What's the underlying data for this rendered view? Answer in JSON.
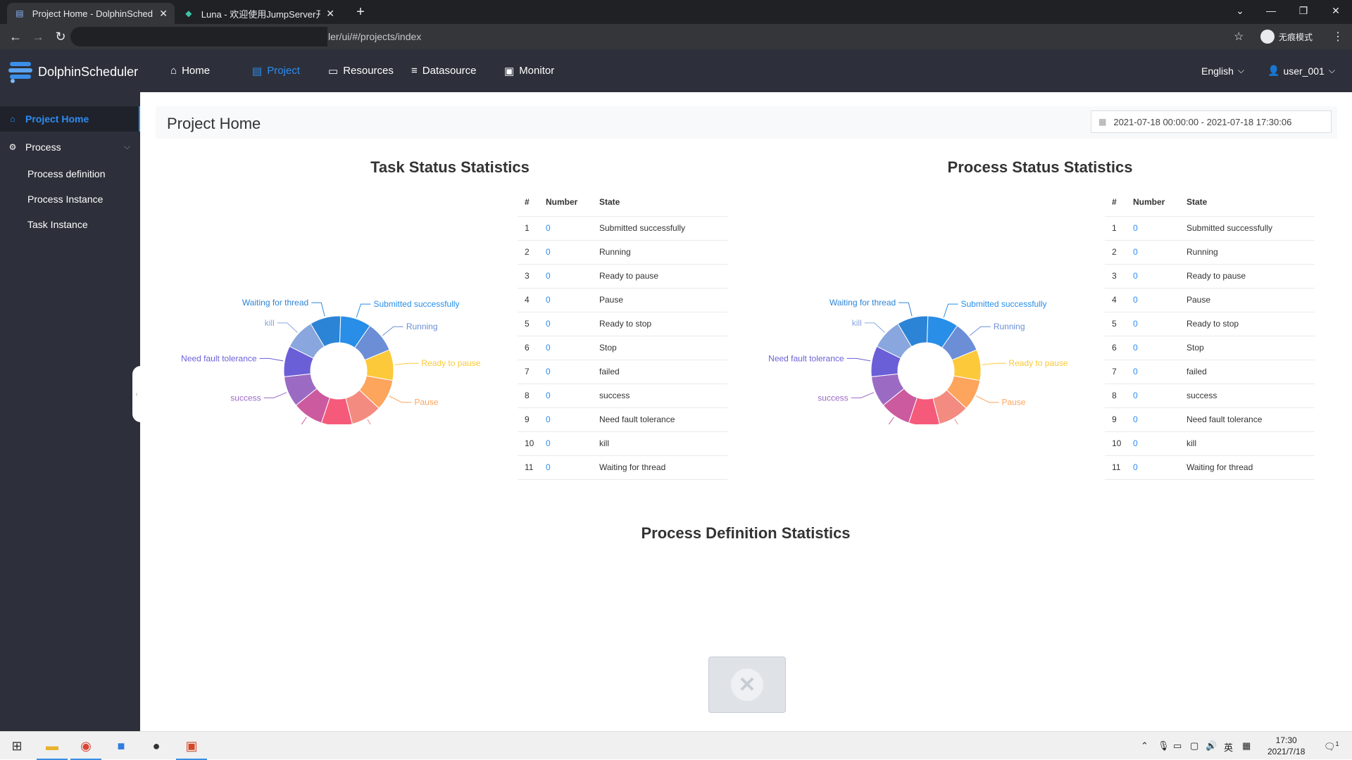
{
  "browser": {
    "tabs": [
      {
        "label": "Project Home - DolphinSched",
        "active": true
      },
      {
        "label": "Luna - 欢迎使用JumpServer开",
        "active": false
      }
    ],
    "url": "ler/ui/#/projects/index",
    "incognito_label": "无痕模式"
  },
  "header": {
    "brand": "DolphinScheduler",
    "nav": [
      {
        "label": "Home",
        "icon": "home-icon",
        "active": false
      },
      {
        "label": "Project",
        "icon": "project-icon",
        "active": true
      },
      {
        "label": "Resources",
        "icon": "folder-icon",
        "active": false
      },
      {
        "label": "Datasource",
        "icon": "database-icon",
        "active": false
      },
      {
        "label": "Monitor",
        "icon": "monitor-icon",
        "active": false
      }
    ],
    "language": "English",
    "user": "user_001"
  },
  "sidebar": {
    "items": [
      {
        "label": "Project Home",
        "active": true
      },
      {
        "label": "Process",
        "active": false
      }
    ],
    "sub_items": [
      "Process definition",
      "Process Instance",
      "Task Instance"
    ]
  },
  "main": {
    "page_title": "Project Home",
    "date_range": "2021-07-18 00:00:00 - 2021-07-18 17:30:06",
    "task_title": "Task Status Statistics",
    "process_title": "Process Status Statistics",
    "definition_title": "Process Definition Statistics",
    "table_headers": [
      "#",
      "Number",
      "State"
    ]
  },
  "chart_data": [
    {
      "type": "pie",
      "title": "Task Status Statistics",
      "categories": [
        "Submitted successfully",
        "Running",
        "Ready to pause",
        "Pause",
        "Ready to stop",
        "Stop",
        "failed",
        "success",
        "Need fault tolerance",
        "kill",
        "Waiting for thread"
      ],
      "values": [
        0,
        0,
        0,
        0,
        0,
        0,
        0,
        0,
        0,
        0,
        0
      ],
      "colors": [
        "#288ee8",
        "#6b8ed7",
        "#fcc93a",
        "#fda45d",
        "#f38b80",
        "#f55a7a",
        "#cc5a9e",
        "#9b6bc4",
        "#6b5fd8",
        "#89a6de",
        "#2c84d6"
      ]
    },
    {
      "type": "pie",
      "title": "Process Status Statistics",
      "categories": [
        "Submitted successfully",
        "Running",
        "Ready to pause",
        "Pause",
        "Ready to stop",
        "Stop",
        "failed",
        "success",
        "Need fault tolerance",
        "kill",
        "Waiting for thread"
      ],
      "values": [
        0,
        0,
        0,
        0,
        0,
        0,
        0,
        0,
        0,
        0,
        0
      ],
      "colors": [
        "#288ee8",
        "#6b8ed7",
        "#fcc93a",
        "#fda45d",
        "#f38b80",
        "#f55a7a",
        "#cc5a9e",
        "#9b6bc4",
        "#6b5fd8",
        "#89a6de",
        "#2c84d6"
      ]
    }
  ],
  "taskbar": {
    "ime": "英",
    "time": "17:30",
    "date": "2021/7/18",
    "notification_count": "1"
  }
}
